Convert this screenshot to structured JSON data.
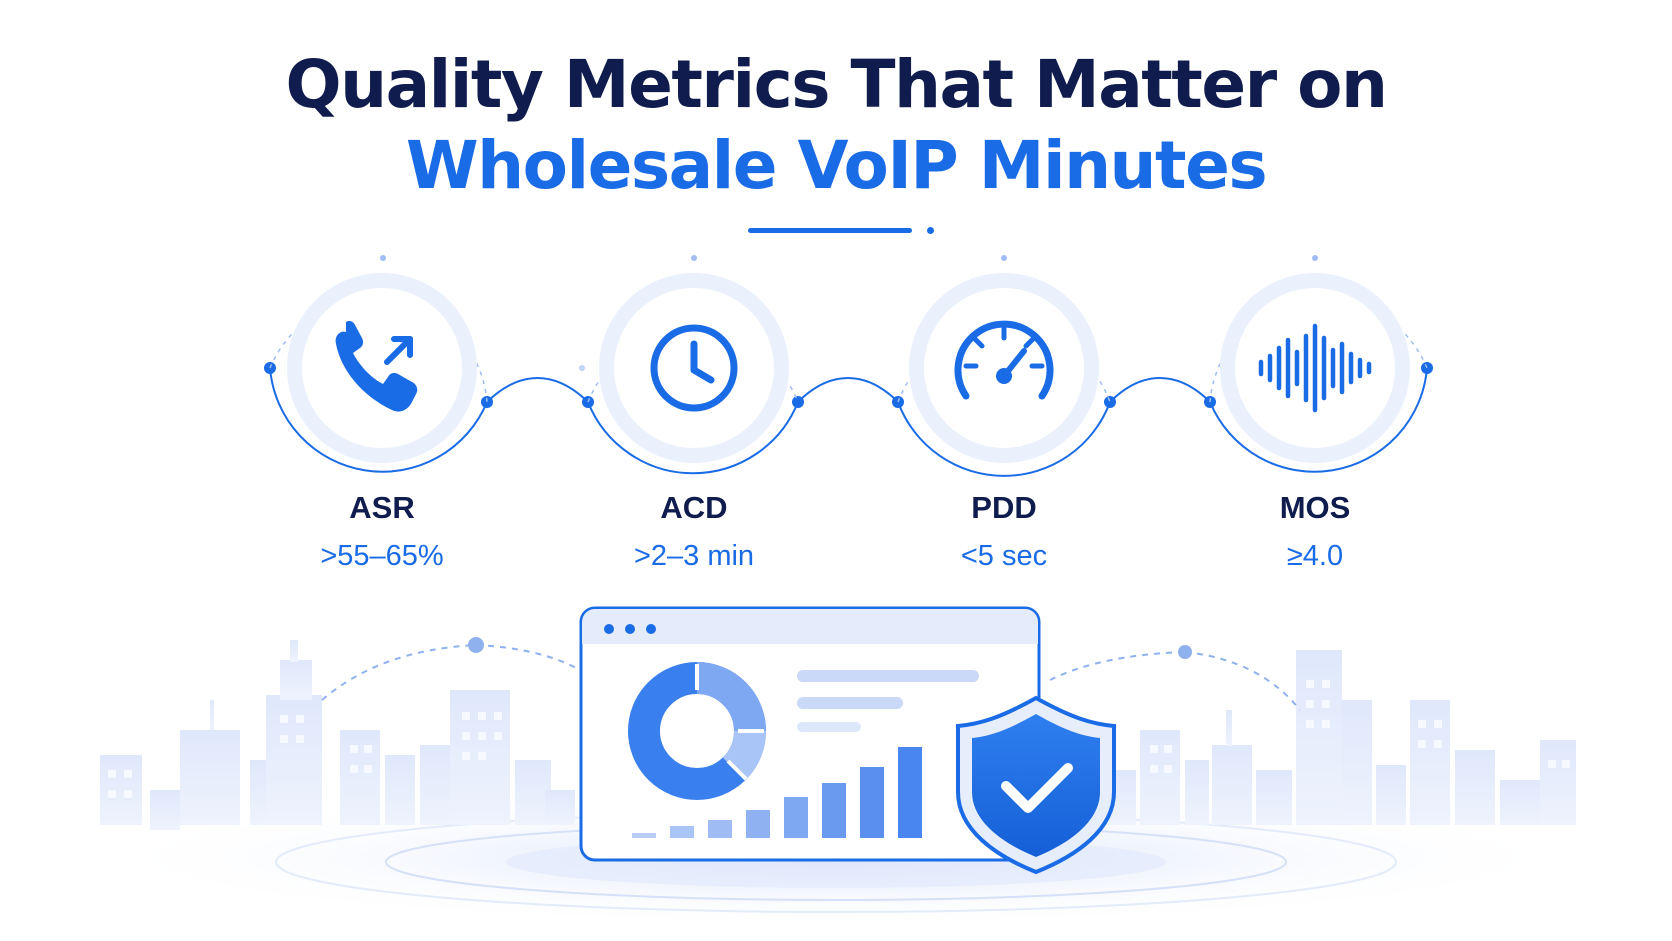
{
  "title": {
    "line1": "Quality Metrics That Matter on",
    "line2": "Wholesale VoIP Minutes"
  },
  "metrics": [
    {
      "name": "ASR",
      "value": ">55–65%",
      "icon": "phone-outgoing-icon"
    },
    {
      "name": "ACD",
      "value": ">2–3 min",
      "icon": "clock-icon"
    },
    {
      "name": "PDD",
      "value": "<5 sec",
      "icon": "speedometer-icon"
    },
    {
      "name": "MOS",
      "value": "≥4.0",
      "icon": "sound-wave-icon"
    }
  ],
  "illustration": {
    "dashboard": "browser-dashboard-illustration",
    "shield": "shield-check-icon",
    "background": "city-skyline"
  },
  "colors": {
    "navy": "#0f1c4d",
    "blue": "#1a6be6",
    "light_blue": "#dbe7fb",
    "pale_blue": "#eef4fd"
  }
}
